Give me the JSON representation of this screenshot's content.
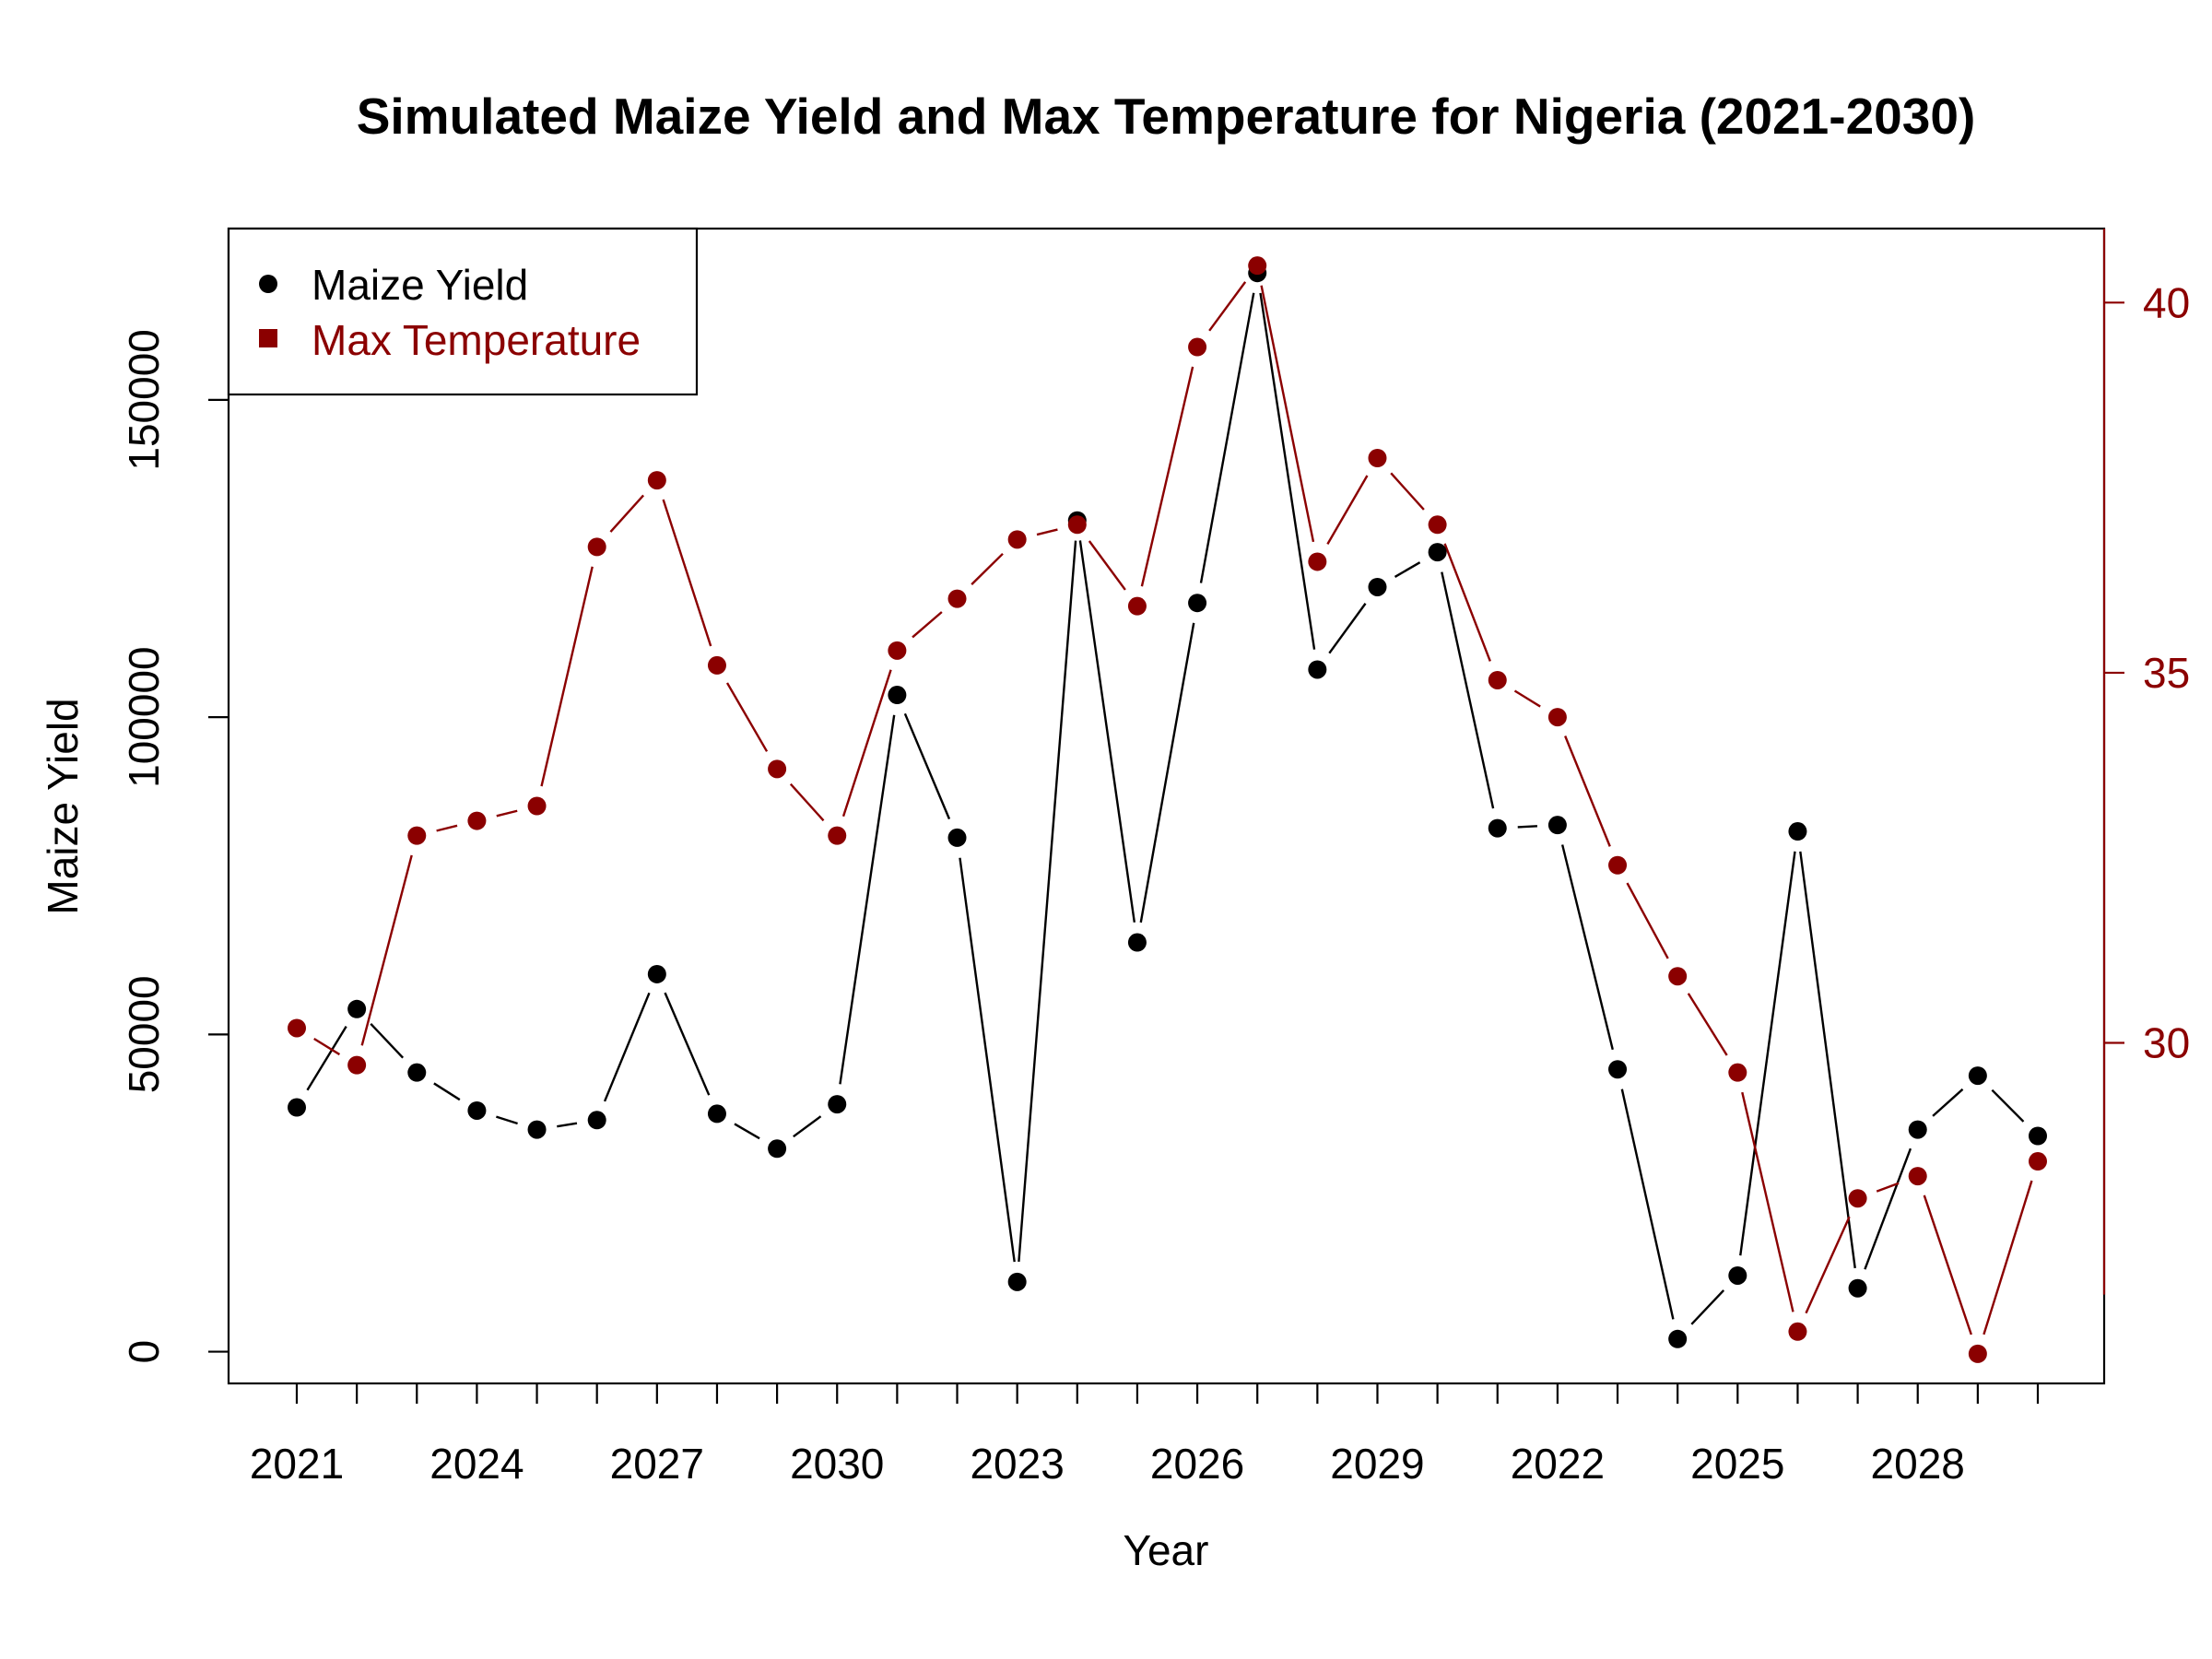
{
  "chart_data": {
    "type": "line",
    "title": "Simulated Maize Yield and Max Temperature for Nigeria (2021-2030)",
    "xlabel": "Year",
    "ylabel": "Maize Yield",
    "y2label": "",
    "categories": [
      "2021",
      "2022",
      "2023",
      "2024",
      "2025",
      "2026",
      "2027",
      "2028",
      "2029",
      "2030",
      "2021",
      "2022",
      "2023",
      "2024",
      "2025",
      "2026",
      "2027",
      "2028",
      "2029",
      "2030",
      "2021",
      "2022",
      "2023",
      "2024",
      "2025",
      "2026",
      "2027",
      "2028",
      "2029",
      "2030"
    ],
    "x_tick_labels": [
      {
        "index": 0,
        "label": "2021"
      },
      {
        "index": 3,
        "label": "2024"
      },
      {
        "index": 6,
        "label": "2027"
      },
      {
        "index": 9,
        "label": "2030"
      },
      {
        "index": 12,
        "label": "2023"
      },
      {
        "index": 15,
        "label": "2026"
      },
      {
        "index": 18,
        "label": "2029"
      },
      {
        "index": 21,
        "label": "2022"
      },
      {
        "index": 24,
        "label": "2025"
      },
      {
        "index": 27,
        "label": "2028"
      }
    ],
    "ylim": [
      -5000,
      177000
    ],
    "yticks": [
      0,
      50000,
      100000,
      150000
    ],
    "ytick_labels": [
      "0",
      "50000",
      "100000",
      "150000"
    ],
    "y2lim": [
      25.4,
      41.0
    ],
    "y2ticks": [
      30,
      35,
      40
    ],
    "y2tick_labels": [
      "30",
      "35",
      "40"
    ],
    "series": [
      {
        "name": "Maize Yield",
        "axis": "left",
        "color": "#000000",
        "marker": "circle",
        "values": [
          38500,
          54000,
          44000,
          38000,
          35000,
          36500,
          59500,
          37500,
          32000,
          39000,
          103500,
          81000,
          11000,
          131000,
          64500,
          118000,
          170000,
          107500,
          120500,
          126000,
          82500,
          83000,
          44500,
          2000,
          12000,
          82000,
          10000,
          35000,
          43500,
          34000
        ]
      },
      {
        "name": "Max Temperature",
        "axis": "right",
        "color": "#8b0000",
        "marker": "square",
        "values": [
          30.2,
          29.7,
          32.8,
          33.0,
          33.2,
          36.7,
          37.6,
          35.1,
          33.7,
          32.8,
          35.3,
          36.0,
          36.8,
          37.0,
          35.9,
          39.4,
          40.5,
          36.5,
          37.9,
          37.0,
          34.9,
          34.4,
          32.4,
          30.9,
          29.6,
          26.1,
          27.9,
          28.2,
          25.8,
          28.4
        ]
      }
    ],
    "legend": {
      "position": "top-left",
      "entries": [
        {
          "label": "Maize Yield",
          "color": "#000000",
          "marker": "circle"
        },
        {
          "label": "Max Temperature",
          "color": "#8b0000",
          "marker": "square"
        }
      ]
    },
    "grid": false
  }
}
